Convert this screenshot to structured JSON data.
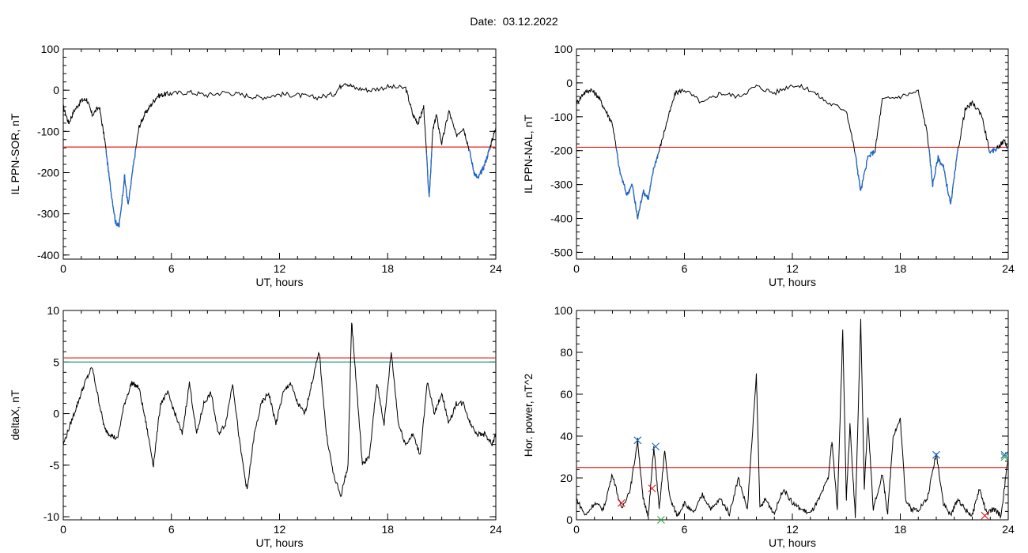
{
  "page": {
    "date_label": "Date:",
    "date_value": "03.12.2022"
  },
  "colors": {
    "trace": "#000000",
    "threshold_red": "#e8231f",
    "threshold_teal": "#1aa585",
    "segment_blue": "#1f66c8",
    "marker_green": "#2ea84a"
  },
  "chart_data": [
    {
      "type": "line",
      "ylabel": "IL PPN-SOR, nT",
      "xlabel": "UT, hours",
      "xlim": [
        0,
        24
      ],
      "ylim": [
        -410,
        100
      ],
      "xticks": [
        0,
        6,
        12,
        18,
        24
      ],
      "yticks": [
        100,
        0,
        -100,
        -200,
        -300,
        -400
      ],
      "threshold": {
        "value": -138,
        "color": "#e8231f"
      },
      "series": {
        "x": [
          0,
          0.3,
          0.6,
          1.0,
          1.3,
          1.6,
          2.0,
          2.3,
          2.6,
          2.9,
          3.1,
          3.4,
          3.6,
          3.9,
          4.2,
          4.5,
          4.8,
          5.2,
          5.6,
          6,
          7,
          8,
          9,
          10,
          11,
          12,
          13,
          14,
          15,
          15.6,
          16.2,
          17,
          18,
          19,
          19.4,
          19.7,
          20.0,
          20.3,
          20.5,
          20.7,
          21.0,
          21.4,
          21.8,
          22.2,
          22.5,
          22.8,
          23.0,
          23.3,
          23.6,
          23.8,
          24
        ],
        "y": [
          -40,
          -80,
          -50,
          -25,
          -22,
          -60,
          -40,
          -120,
          -230,
          -320,
          -330,
          -210,
          -280,
          -180,
          -90,
          -60,
          -40,
          -15,
          -10,
          -8,
          -5,
          -12,
          -5,
          -12,
          -18,
          -10,
          -12,
          -18,
          -10,
          20,
          5,
          0,
          8,
          5,
          -60,
          -80,
          -40,
          -265,
          -100,
          -60,
          -130,
          -50,
          -110,
          -90,
          -140,
          -200,
          -215,
          -190,
          -150,
          -120,
          -90
        ]
      },
      "below_threshold_color": "#1f66c8"
    },
    {
      "type": "line",
      "ylabel": "IL PPN-NAL, nT",
      "xlabel": "UT, hours",
      "xlim": [
        0,
        24
      ],
      "ylim": [
        -520,
        100
      ],
      "xticks": [
        0,
        6,
        12,
        18,
        24
      ],
      "yticks": [
        100,
        0,
        -100,
        -200,
        -300,
        -400,
        -500
      ],
      "threshold": {
        "value": -190,
        "color": "#e8231f"
      },
      "series": {
        "x": [
          0,
          0.4,
          0.8,
          1.2,
          1.6,
          2.0,
          2.4,
          2.8,
          3.1,
          3.4,
          3.7,
          4.0,
          4.3,
          4.6,
          5.0,
          5.5,
          6,
          7,
          8,
          9,
          10,
          11,
          12,
          13,
          14,
          15,
          15.5,
          15.8,
          16.2,
          16.6,
          17,
          18,
          19,
          19.5,
          19.8,
          20.1,
          20.4,
          20.8,
          21.2,
          21.6,
          22,
          22.5,
          23,
          23.4,
          23.8,
          24
        ],
        "y": [
          -60,
          -30,
          -20,
          -40,
          -80,
          -120,
          -260,
          -330,
          -300,
          -400,
          -320,
          -340,
          -250,
          -200,
          -120,
          -30,
          -20,
          -60,
          -30,
          -40,
          -10,
          -30,
          -5,
          -20,
          -60,
          -80,
          -210,
          -320,
          -220,
          -200,
          -50,
          -40,
          -25,
          -150,
          -300,
          -220,
          -250,
          -360,
          -200,
          -80,
          -60,
          -90,
          -210,
          -190,
          -170,
          -200
        ]
      },
      "below_threshold_color": "#1f66c8"
    },
    {
      "type": "line",
      "ylabel": "deltaX, nT",
      "xlabel": "UT, hours",
      "xlim": [
        0,
        24
      ],
      "ylim": [
        -10.3,
        10
      ],
      "xticks": [
        0,
        6,
        12,
        18,
        24
      ],
      "yticks": [
        10,
        5,
        0,
        -5,
        -10
      ],
      "thresholds": [
        {
          "value": 5.4,
          "color": "#e8231f"
        },
        {
          "value": 5.0,
          "color": "#1aa585"
        }
      ],
      "series": {
        "x": [
          0,
          0.4,
          0.8,
          1.2,
          1.6,
          2.0,
          2.3,
          2.6,
          3.0,
          3.4,
          3.8,
          4.2,
          4.6,
          5.0,
          5.4,
          5.8,
          6.2,
          6.6,
          7.0,
          7.4,
          7.8,
          8.2,
          8.6,
          9.0,
          9.4,
          9.8,
          10.2,
          10.6,
          11.0,
          11.4,
          11.8,
          12.2,
          12.6,
          13.0,
          13.4,
          13.8,
          14.2,
          14.6,
          15.0,
          15.4,
          15.8,
          16.0,
          16.3,
          16.6,
          17.0,
          17.4,
          17.8,
          18.2,
          18.6,
          19.0,
          19.4,
          19.8,
          20.2,
          20.6,
          21.0,
          21.4,
          21.8,
          22.2,
          22.6,
          23.0,
          23.4,
          23.8,
          24
        ],
        "y": [
          -3,
          -1,
          1,
          3,
          4.5,
          1,
          -1.5,
          -2,
          -2.5,
          1,
          3,
          2.5,
          -1,
          -5,
          1,
          2,
          0,
          -2,
          3,
          -2,
          1,
          2,
          -2,
          -1,
          3,
          -3,
          -7.5,
          -2,
          1,
          2,
          -1,
          2,
          3,
          1,
          0,
          3,
          6,
          -2,
          -6,
          -8,
          -5,
          9,
          2,
          -5,
          -4,
          3,
          -1,
          6,
          -1,
          -3,
          -2,
          -4,
          3,
          0,
          2,
          -1,
          1,
          1,
          -1,
          -2,
          -2,
          -3,
          -2
        ]
      }
    },
    {
      "type": "line",
      "ylabel": "Hor. power, nT^2",
      "xlabel": "UT, hours",
      "xlim": [
        0,
        24
      ],
      "ylim": [
        0,
        100
      ],
      "xticks": [
        0,
        6,
        12,
        18,
        24
      ],
      "yticks": [
        100,
        80,
        60,
        40,
        20,
        0
      ],
      "threshold": {
        "value": 25,
        "color": "#e8231f"
      },
      "series": {
        "x": [
          0,
          0.5,
          1.0,
          1.5,
          2.0,
          2.5,
          3.0,
          3.4,
          3.7,
          4.0,
          4.3,
          4.6,
          4.9,
          5.2,
          5.6,
          6.0,
          6.5,
          7.0,
          7.5,
          8.0,
          8.5,
          9.0,
          9.5,
          10.0,
          10.2,
          10.5,
          11.0,
          11.5,
          12.0,
          12.5,
          13.0,
          13.5,
          14.0,
          14.2,
          14.5,
          14.8,
          15.0,
          15.2,
          15.5,
          15.8,
          16.0,
          16.2,
          16.5,
          17.0,
          17.3,
          17.6,
          18.0,
          18.3,
          18.6,
          19.0,
          19.5,
          20.0,
          20.4,
          20.8,
          21.2,
          21.6,
          22.0,
          22.4,
          22.8,
          23.2,
          23.6,
          24
        ],
        "y": [
          10,
          2,
          8,
          5,
          22,
          5,
          15,
          38,
          10,
          2,
          35,
          5,
          33,
          10,
          2,
          8,
          3,
          12,
          5,
          10,
          3,
          20,
          5,
          69,
          5,
          10,
          3,
          15,
          8,
          5,
          3,
          10,
          20,
          38,
          5,
          90,
          10,
          45,
          2,
          95,
          15,
          48,
          5,
          22,
          3,
          40,
          48,
          10,
          5,
          5,
          10,
          32,
          8,
          2,
          10,
          5,
          2,
          15,
          3,
          5,
          2,
          30
        ]
      },
      "markers": [
        {
          "x": 3.4,
          "y": 38,
          "symbol": "x",
          "color": "#1f66c8"
        },
        {
          "x": 4.4,
          "y": 35,
          "symbol": "x",
          "color": "#1f66c8"
        },
        {
          "x": 20.0,
          "y": 31,
          "symbol": "x",
          "color": "#1f66c8"
        },
        {
          "x": 23.8,
          "y": 31,
          "symbol": "x",
          "color": "#1f66c8"
        },
        {
          "x": 2.5,
          "y": 8,
          "symbol": "x",
          "color": "#e8231f"
        },
        {
          "x": 4.2,
          "y": 15,
          "symbol": "x",
          "color": "#e8231f"
        },
        {
          "x": 22.7,
          "y": 2,
          "symbol": "x",
          "color": "#e8231f"
        },
        {
          "x": 4.7,
          "y": 0,
          "symbol": "x",
          "color": "#2ea84a"
        },
        {
          "x": 23.8,
          "y": 30,
          "symbol": "x",
          "color": "#2ea84a"
        }
      ]
    }
  ]
}
